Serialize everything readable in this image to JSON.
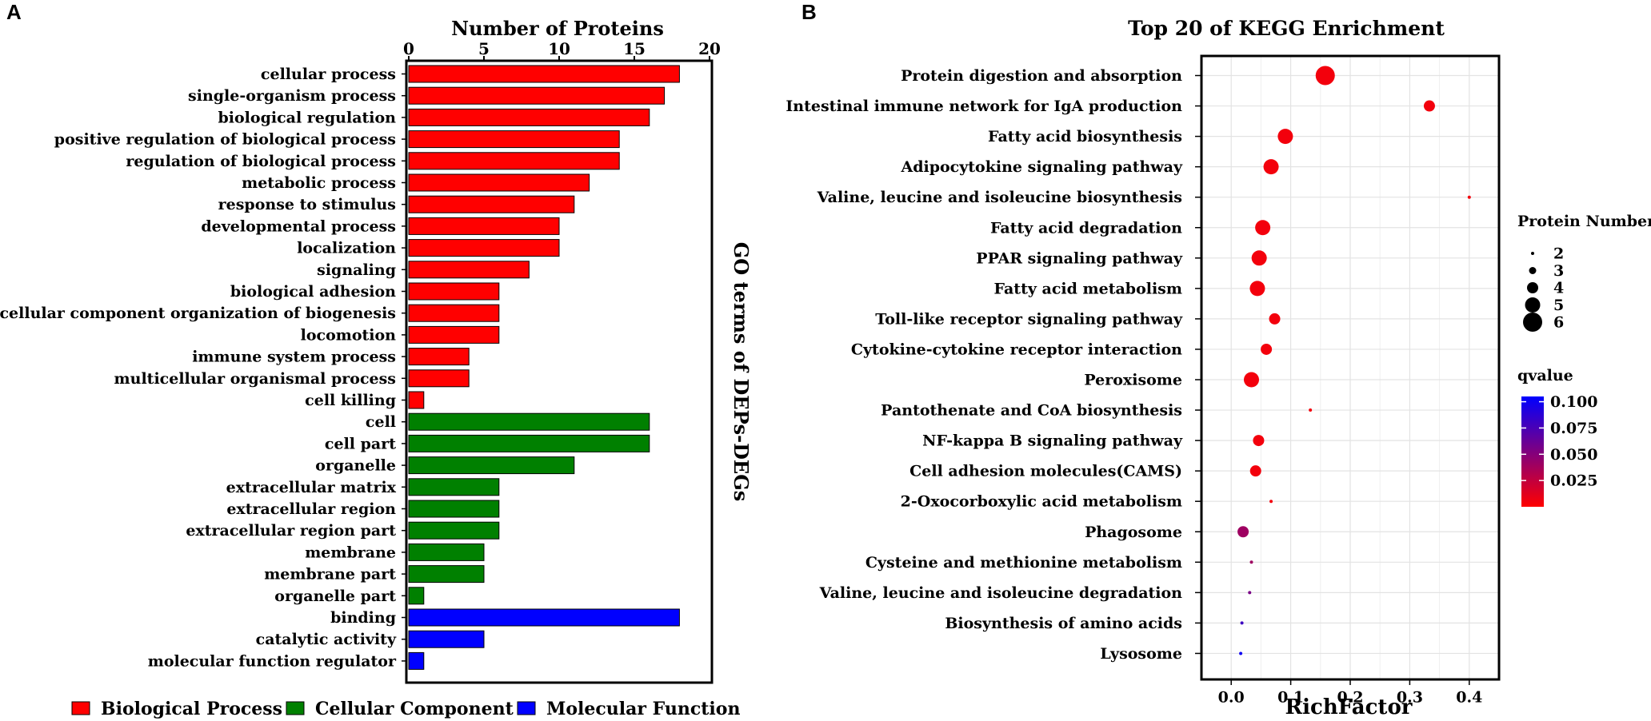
{
  "panels": {
    "a_letter": "A",
    "b_letter": "B"
  },
  "chart_data": [
    {
      "type": "bar",
      "orientation": "horizontal",
      "title": "Number of Proteins",
      "xlabel": "Number of Proteins",
      "ylabel": "GO terms of DEPs-DEGs",
      "xlim": [
        0,
        20
      ],
      "xticks": [
        0,
        5,
        10,
        15,
        20
      ],
      "xtick_labels": [
        "0",
        "5",
        "10",
        "15",
        "20"
      ],
      "axis_position": "top",
      "legend_position": "bottom",
      "series": [
        {
          "name": "Biological Process",
          "color": "#ff0000",
          "categories": [
            "cellular process",
            "single-organism process",
            "biological regulation",
            "positive regulation of biological process",
            "regulation of biological process",
            "metabolic process",
            "response to stimulus",
            "developmental process",
            "localization",
            "signaling",
            "biological adhesion",
            "cellular component organization of biogenesis",
            "locomotion",
            "immune system process",
            "multicellular organismal process",
            "cell killing"
          ],
          "values": [
            18,
            17,
            16,
            14,
            14,
            12,
            11,
            10,
            10,
            8,
            6,
            6,
            6,
            4,
            4,
            1
          ]
        },
        {
          "name": "Cellular Component",
          "color": "#008000",
          "categories": [
            "cell",
            "cell part",
            "organelle",
            "extracellular matrix",
            "extracellular region",
            "extracellular region part",
            "membrane",
            "membrane part",
            "organelle part"
          ],
          "values": [
            16,
            16,
            11,
            6,
            6,
            6,
            5,
            5,
            1
          ]
        },
        {
          "name": "Molecular Function",
          "color": "#0000ff",
          "categories": [
            "binding",
            "catalytic activity",
            "molecular function regulator"
          ],
          "values": [
            18,
            5,
            1
          ]
        }
      ]
    },
    {
      "type": "scatter",
      "title": "Top 20 of KEGG Enrichment",
      "xlabel": "RichFactor",
      "ylabel": "",
      "xlim": [
        -0.05,
        0.45
      ],
      "xticks": [
        0.0,
        0.1,
        0.2,
        0.3,
        0.4
      ],
      "xtick_labels": [
        "0.0",
        "0.1",
        "0.2",
        "0.3",
        "0.4"
      ],
      "grid": true,
      "categories": [
        "Protein digestion and absorption",
        "Intestinal immune network for IgA production",
        "Fatty acid biosynthesis",
        "Adipocytokine signaling pathway",
        "Valine, leucine and isoleucine biosynthesis",
        "Fatty acid degradation",
        "PPAR signaling pathway",
        "Fatty acid metabolism",
        "Toll-like receptor signaling pathway",
        "Cytokine-cytokine receptor interaction",
        "Peroxisome",
        "Pantothenate and CoA biosynthesis",
        "NF-kappa B signaling pathway",
        "Cell adhesion molecules(CAMS)",
        "2-Oxocorboxylic acid metabolism",
        "Phagosome",
        "Cysteine and methionine metabolism",
        "Valine, leucine and isoleucine degradation",
        "Biosynthesis of amino acids",
        "Lysosome"
      ],
      "points": [
        {
          "x": 0.158,
          "count": 6,
          "q": 0.005
        },
        {
          "x": 0.333,
          "count": 4,
          "q": 0.005
        },
        {
          "x": 0.091,
          "count": 5,
          "q": 0.005
        },
        {
          "x": 0.067,
          "count": 5,
          "q": 0.005
        },
        {
          "x": 0.4,
          "count": 2,
          "q": 0.005
        },
        {
          "x": 0.053,
          "count": 5,
          "q": 0.005
        },
        {
          "x": 0.047,
          "count": 5,
          "q": 0.005
        },
        {
          "x": 0.044,
          "count": 5,
          "q": 0.005
        },
        {
          "x": 0.073,
          "count": 4,
          "q": 0.005
        },
        {
          "x": 0.059,
          "count": 4,
          "q": 0.005
        },
        {
          "x": 0.034,
          "count": 5,
          "q": 0.005
        },
        {
          "x": 0.133,
          "count": 2,
          "q": 0.005
        },
        {
          "x": 0.046,
          "count": 4,
          "q": 0.005
        },
        {
          "x": 0.041,
          "count": 4,
          "q": 0.005
        },
        {
          "x": 0.067,
          "count": 2,
          "q": 0.005
        },
        {
          "x": 0.02,
          "count": 4,
          "q": 0.04
        },
        {
          "x": 0.034,
          "count": 2,
          "q": 0.04
        },
        {
          "x": 0.031,
          "count": 2,
          "q": 0.055
        },
        {
          "x": 0.018,
          "count": 2,
          "q": 0.08
        },
        {
          "x": 0.016,
          "count": 2,
          "q": 0.1
        }
      ],
      "size_legend": {
        "title": "Protein Number",
        "values": [
          2,
          3,
          4,
          5,
          6
        ],
        "labels": [
          "2",
          "3",
          "4",
          "5",
          "6"
        ]
      },
      "color_legend": {
        "title": "qvalue",
        "range": [
          0.0,
          0.105
        ],
        "ticks": [
          0.1,
          0.075,
          0.05,
          0.025
        ],
        "tick_labels": [
          "0.100",
          "0.075",
          "0.050",
          "0.025"
        ],
        "low_color": "#ff0000",
        "high_color": "#0000ff"
      }
    }
  ]
}
